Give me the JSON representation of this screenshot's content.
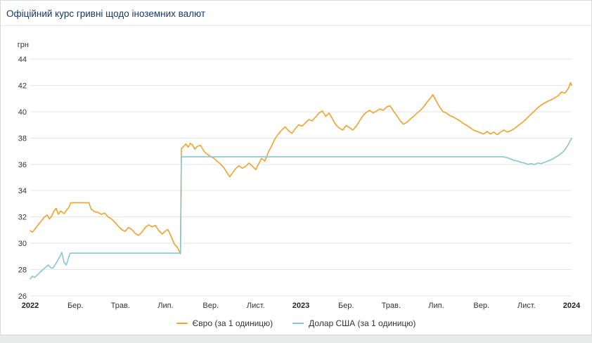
{
  "header": {
    "title": "Офіційний курс гривні щодо іноземних валют"
  },
  "chart_data": {
    "type": "line",
    "title": "Офіційний курс гривні щодо іноземних валют",
    "ylabel": "грн",
    "ylim": [
      26,
      44
    ],
    "xlim": [
      0,
      24
    ],
    "x_unit": "months since 2022-01",
    "grid": "horizontal",
    "legend_position": "bottom",
    "yticks": [
      26,
      28,
      30,
      32,
      34,
      36,
      38,
      40,
      42,
      44
    ],
    "xticks": [
      {
        "x": 0,
        "label": "2022",
        "bold": true
      },
      {
        "x": 2,
        "label": "Бер.",
        "bold": false
      },
      {
        "x": 4,
        "label": "Трав.",
        "bold": false
      },
      {
        "x": 6,
        "label": "Лип.",
        "bold": false
      },
      {
        "x": 8,
        "label": "Вер.",
        "bold": false
      },
      {
        "x": 10,
        "label": "Лист.",
        "bold": false
      },
      {
        "x": 12,
        "label": "2023",
        "bold": true
      },
      {
        "x": 14,
        "label": "Бер.",
        "bold": false
      },
      {
        "x": 16,
        "label": "Трав.",
        "bold": false
      },
      {
        "x": 18,
        "label": "Лип.",
        "bold": false
      },
      {
        "x": 20,
        "label": "Вер.",
        "bold": false
      },
      {
        "x": 22,
        "label": "Лист.",
        "bold": false
      },
      {
        "x": 24,
        "label": "2024",
        "bold": true
      }
    ],
    "series": [
      {
        "id": "euro",
        "name": "Євро (за 1 одиницю)",
        "color": "#EFA22D",
        "points": [
          [
            0.0,
            30.95
          ],
          [
            0.1,
            30.85
          ],
          [
            0.2,
            31.05
          ],
          [
            0.3,
            31.3
          ],
          [
            0.45,
            31.6
          ],
          [
            0.6,
            31.95
          ],
          [
            0.75,
            32.15
          ],
          [
            0.85,
            31.85
          ],
          [
            0.95,
            32.05
          ],
          [
            1.05,
            32.45
          ],
          [
            1.15,
            32.65
          ],
          [
            1.25,
            32.2
          ],
          [
            1.35,
            32.45
          ],
          [
            1.5,
            32.25
          ],
          [
            1.6,
            32.5
          ],
          [
            1.7,
            32.7
          ],
          [
            1.8,
            33.08
          ],
          [
            2.6,
            33.08
          ],
          [
            2.7,
            32.6
          ],
          [
            2.85,
            32.4
          ],
          [
            3.0,
            32.35
          ],
          [
            3.15,
            32.2
          ],
          [
            3.3,
            32.3
          ],
          [
            3.45,
            32.0
          ],
          [
            3.6,
            31.85
          ],
          [
            3.75,
            31.6
          ],
          [
            3.9,
            31.3
          ],
          [
            4.05,
            31.05
          ],
          [
            4.2,
            30.9
          ],
          [
            4.35,
            31.2
          ],
          [
            4.5,
            31.05
          ],
          [
            4.65,
            30.75
          ],
          [
            4.8,
            30.6
          ],
          [
            4.95,
            30.85
          ],
          [
            5.1,
            31.2
          ],
          [
            5.25,
            31.4
          ],
          [
            5.4,
            31.25
          ],
          [
            5.55,
            31.35
          ],
          [
            5.7,
            30.95
          ],
          [
            5.85,
            30.7
          ],
          [
            6.0,
            30.95
          ],
          [
            6.1,
            31.05
          ],
          [
            6.2,
            30.7
          ],
          [
            6.3,
            30.3
          ],
          [
            6.4,
            29.9
          ],
          [
            6.5,
            29.75
          ],
          [
            6.58,
            29.5
          ],
          [
            6.66,
            29.2
          ],
          [
            6.7,
            37.2
          ],
          [
            6.8,
            37.35
          ],
          [
            6.9,
            37.55
          ],
          [
            7.0,
            37.3
          ],
          [
            7.1,
            37.6
          ],
          [
            7.2,
            37.45
          ],
          [
            7.3,
            37.15
          ],
          [
            7.4,
            37.35
          ],
          [
            7.55,
            37.45
          ],
          [
            7.7,
            37.0
          ],
          [
            7.85,
            36.75
          ],
          [
            8.0,
            36.6
          ],
          [
            8.15,
            36.45
          ],
          [
            8.3,
            36.2
          ],
          [
            8.45,
            36.0
          ],
          [
            8.6,
            35.7
          ],
          [
            8.75,
            35.3
          ],
          [
            8.85,
            35.05
          ],
          [
            8.95,
            35.3
          ],
          [
            9.1,
            35.65
          ],
          [
            9.25,
            35.9
          ],
          [
            9.4,
            35.7
          ],
          [
            9.55,
            35.85
          ],
          [
            9.7,
            36.1
          ],
          [
            9.85,
            35.85
          ],
          [
            10.0,
            35.6
          ],
          [
            10.1,
            35.95
          ],
          [
            10.25,
            36.45
          ],
          [
            10.4,
            36.25
          ],
          [
            10.55,
            36.9
          ],
          [
            10.7,
            37.4
          ],
          [
            10.85,
            37.95
          ],
          [
            11.0,
            38.3
          ],
          [
            11.15,
            38.6
          ],
          [
            11.3,
            38.85
          ],
          [
            11.45,
            38.55
          ],
          [
            11.6,
            38.35
          ],
          [
            11.75,
            38.7
          ],
          [
            11.9,
            39.0
          ],
          [
            12.05,
            38.9
          ],
          [
            12.2,
            39.15
          ],
          [
            12.35,
            39.4
          ],
          [
            12.5,
            39.3
          ],
          [
            12.65,
            39.6
          ],
          [
            12.8,
            39.9
          ],
          [
            12.95,
            40.05
          ],
          [
            13.1,
            39.65
          ],
          [
            13.25,
            39.9
          ],
          [
            13.4,
            39.45
          ],
          [
            13.55,
            39.0
          ],
          [
            13.7,
            38.75
          ],
          [
            13.85,
            38.6
          ],
          [
            14.0,
            38.95
          ],
          [
            14.15,
            38.8
          ],
          [
            14.3,
            38.6
          ],
          [
            14.45,
            38.9
          ],
          [
            14.6,
            39.3
          ],
          [
            14.75,
            39.7
          ],
          [
            14.9,
            39.95
          ],
          [
            15.05,
            40.1
          ],
          [
            15.2,
            39.9
          ],
          [
            15.35,
            40.05
          ],
          [
            15.5,
            40.2
          ],
          [
            15.65,
            40.1
          ],
          [
            15.8,
            40.35
          ],
          [
            15.95,
            40.45
          ],
          [
            16.1,
            40.05
          ],
          [
            16.25,
            39.7
          ],
          [
            16.4,
            39.3
          ],
          [
            16.55,
            39.05
          ],
          [
            16.7,
            39.2
          ],
          [
            16.85,
            39.45
          ],
          [
            17.0,
            39.65
          ],
          [
            17.15,
            39.9
          ],
          [
            17.3,
            40.1
          ],
          [
            17.45,
            40.4
          ],
          [
            17.6,
            40.75
          ],
          [
            17.75,
            41.05
          ],
          [
            17.85,
            41.3
          ],
          [
            18.0,
            40.8
          ],
          [
            18.15,
            40.35
          ],
          [
            18.3,
            40.0
          ],
          [
            18.45,
            39.9
          ],
          [
            18.6,
            39.7
          ],
          [
            18.75,
            39.6
          ],
          [
            18.9,
            39.45
          ],
          [
            19.05,
            39.3
          ],
          [
            19.2,
            39.1
          ],
          [
            19.35,
            38.95
          ],
          [
            19.5,
            38.8
          ],
          [
            19.65,
            38.6
          ],
          [
            19.8,
            38.5
          ],
          [
            19.95,
            38.4
          ],
          [
            20.1,
            38.3
          ],
          [
            20.25,
            38.5
          ],
          [
            20.4,
            38.3
          ],
          [
            20.55,
            38.45
          ],
          [
            20.7,
            38.25
          ],
          [
            20.85,
            38.45
          ],
          [
            21.0,
            38.6
          ],
          [
            21.15,
            38.45
          ],
          [
            21.3,
            38.55
          ],
          [
            21.45,
            38.7
          ],
          [
            21.6,
            38.9
          ],
          [
            21.75,
            39.1
          ],
          [
            21.9,
            39.3
          ],
          [
            22.05,
            39.55
          ],
          [
            22.2,
            39.8
          ],
          [
            22.35,
            40.05
          ],
          [
            22.5,
            40.3
          ],
          [
            22.65,
            40.5
          ],
          [
            22.8,
            40.65
          ],
          [
            22.95,
            40.8
          ],
          [
            23.1,
            40.9
          ],
          [
            23.25,
            41.05
          ],
          [
            23.4,
            41.2
          ],
          [
            23.55,
            41.5
          ],
          [
            23.7,
            41.4
          ],
          [
            23.85,
            41.75
          ],
          [
            23.95,
            42.2
          ],
          [
            24.0,
            42.0
          ]
        ]
      },
      {
        "id": "usd",
        "name": "Долар США (за 1 одиницю)",
        "color": "#85C7CE",
        "points": [
          [
            0.0,
            27.3
          ],
          [
            0.1,
            27.5
          ],
          [
            0.2,
            27.4
          ],
          [
            0.35,
            27.65
          ],
          [
            0.5,
            27.9
          ],
          [
            0.6,
            28.05
          ],
          [
            0.7,
            28.2
          ],
          [
            0.8,
            28.35
          ],
          [
            0.9,
            28.15
          ],
          [
            1.0,
            28.1
          ],
          [
            1.1,
            28.35
          ],
          [
            1.2,
            28.65
          ],
          [
            1.3,
            28.95
          ],
          [
            1.4,
            29.3
          ],
          [
            1.5,
            28.55
          ],
          [
            1.6,
            28.35
          ],
          [
            1.7,
            28.9
          ],
          [
            1.77,
            29.25
          ],
          [
            6.66,
            29.25
          ],
          [
            6.7,
            36.57
          ],
          [
            21.0,
            36.57
          ],
          [
            21.15,
            36.5
          ],
          [
            21.3,
            36.4
          ],
          [
            21.45,
            36.3
          ],
          [
            21.6,
            36.25
          ],
          [
            21.75,
            36.15
          ],
          [
            21.9,
            36.1
          ],
          [
            22.05,
            36.0
          ],
          [
            22.2,
            36.05
          ],
          [
            22.35,
            35.98
          ],
          [
            22.5,
            36.1
          ],
          [
            22.65,
            36.05
          ],
          [
            22.8,
            36.15
          ],
          [
            22.95,
            36.25
          ],
          [
            23.1,
            36.35
          ],
          [
            23.25,
            36.5
          ],
          [
            23.4,
            36.65
          ],
          [
            23.55,
            36.85
          ],
          [
            23.7,
            37.1
          ],
          [
            23.85,
            37.5
          ],
          [
            24.0,
            37.98
          ]
        ]
      }
    ]
  }
}
